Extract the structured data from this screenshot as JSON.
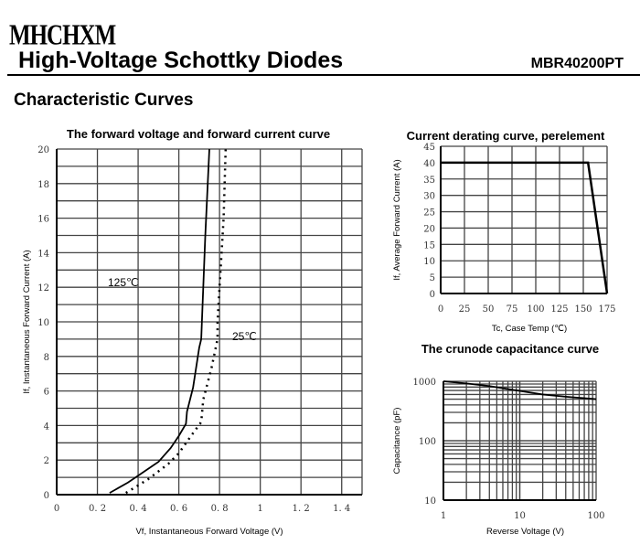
{
  "header": {
    "logo": "MHCHXM",
    "title": "High-Voltage Schottky Diodes",
    "part_number": "MBR40200PT",
    "section": "Characteristic Curves"
  },
  "chart_data": [
    {
      "type": "line",
      "title": "The forward voltage and forward current curve",
      "xlabel": "Vf, Instantaneous Forward Voltage (V)",
      "ylabel": "If, Instantaneous Forward Current (A)",
      "xlim": [
        0,
        1.5
      ],
      "ylim": [
        0,
        20
      ],
      "xticks": [
        "0",
        "0.2",
        "0.4",
        "0.6",
        "0.8",
        "1",
        "1.2",
        "1.4"
      ],
      "yticks": [
        "0",
        "2",
        "4",
        "6",
        "8",
        "10",
        "12",
        "14",
        "16",
        "18",
        "20"
      ],
      "grid": true,
      "series": [
        {
          "name": "125℃",
          "style": "solid",
          "x": [
            0.26,
            0.35,
            0.4,
            0.5,
            0.56,
            0.6,
            0.635,
            0.64,
            0.67,
            0.7,
            0.71,
            0.72,
            0.73,
            0.75
          ],
          "y": [
            0.1,
            0.7,
            1.1,
            1.9,
            2.7,
            3.4,
            4.1,
            4.8,
            6.2,
            8.5,
            9.0,
            12.0,
            15.0,
            20.0
          ]
        },
        {
          "name": "25℃",
          "style": "dotted",
          "x": [
            0.34,
            0.45,
            0.55,
            0.6,
            0.66,
            0.71,
            0.72,
            0.76,
            0.79,
            0.79,
            0.8,
            0.81,
            0.82,
            0.83
          ],
          "y": [
            0.1,
            0.9,
            1.8,
            2.4,
            3.4,
            4.2,
            5.5,
            7.3,
            9.0,
            10.0,
            12.0,
            14.0,
            16.0,
            20.0
          ]
        }
      ]
    },
    {
      "type": "line",
      "title": "Current derating curve, perelement",
      "xlabel": "Tc, Case Temp (℃)",
      "ylabel": "If, Average Forward Current (A)",
      "xlim": [
        0,
        175
      ],
      "ylim": [
        0,
        45
      ],
      "xticks": [
        "0",
        "25",
        "50",
        "75",
        "100",
        "125",
        "150",
        "175"
      ],
      "yticks": [
        "0",
        "5",
        "10",
        "15",
        "20",
        "25",
        "30",
        "35",
        "40",
        "45"
      ],
      "grid": true,
      "series": [
        {
          "x": [
            0,
            155,
            175
          ],
          "y": [
            40,
            40,
            0
          ]
        }
      ]
    },
    {
      "type": "line",
      "title": "The crunode capacitance curve",
      "xlabel": "Reverse Voltage (V)",
      "ylabel": "Capacitance (pF)",
      "xscale": "log",
      "yscale": "log",
      "xlim": [
        1,
        100
      ],
      "ylim": [
        10,
        1000
      ],
      "xticks": [
        "1",
        "10",
        "100"
      ],
      "yticks": [
        "10",
        "100",
        "1000"
      ],
      "grid": true,
      "series": [
        {
          "x": [
            1,
            2,
            4,
            8,
            20,
            40,
            100
          ],
          "y": [
            1000,
            920,
            830,
            720,
            600,
            550,
            500
          ]
        }
      ]
    }
  ]
}
